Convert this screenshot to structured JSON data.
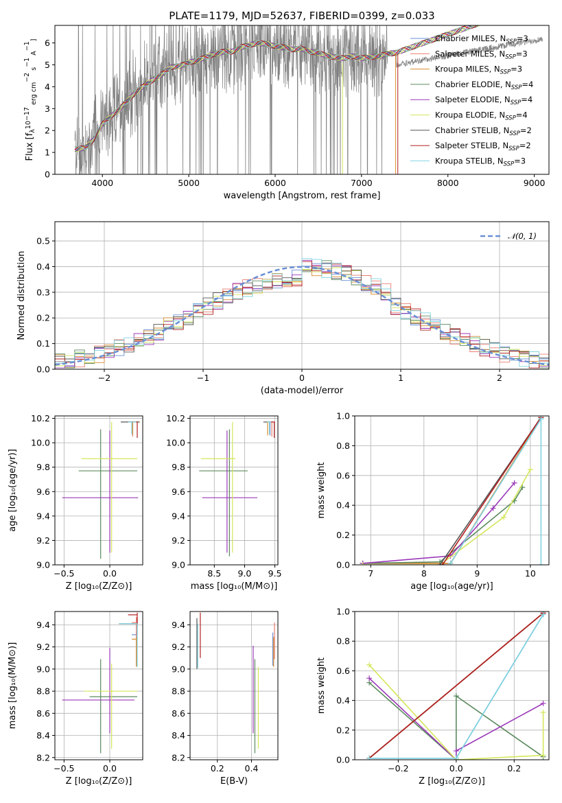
{
  "figure": {
    "title": "PLATE=1179, MJD=52637, FIBERID=0399, z=0.033"
  },
  "models": [
    {
      "name": "Chabrier MILES",
      "nssp": "3",
      "color": "#6a8fd4"
    },
    {
      "name": "Salpeter MILES",
      "nssp": "3",
      "color": "#e87b6d"
    },
    {
      "name": "Kroupa MILES",
      "nssp": "3",
      "color": "#d98b2b"
    },
    {
      "name": "Chabrier ELODIE",
      "nssp": "4",
      "color": "#5a8a5e"
    },
    {
      "name": "Salpeter ELODIE",
      "nssp": "4",
      "color": "#9b37b8"
    },
    {
      "name": "Kroupa ELODIE",
      "nssp": "4",
      "color": "#d4e65a"
    },
    {
      "name": "Chabrier STELIB",
      "nssp": "2",
      "color": "#555555"
    },
    {
      "name": "Salpeter STELIB",
      "nssp": "2",
      "color": "#b21f1f"
    },
    {
      "name": "Kroupa STELIB",
      "nssp": "3",
      "color": "#7fd4e0"
    }
  ],
  "chart_data": [
    {
      "id": "spectrum",
      "type": "line",
      "title": "PLATE=1179, MJD=52637, FIBERID=0399, z=0.033",
      "xlabel": "wavelength [Angstrom, rest frame]",
      "ylabel_parts": [
        "Flux [f",
        "λ",
        "10",
        "−17",
        " erg cm",
        "−2",
        " s",
        "−1",
        " A",
        "−1",
        "]"
      ],
      "xlim": [
        3450,
        9170
      ],
      "ylim": [
        0,
        6.8
      ],
      "xticks": [
        "4000",
        "5000",
        "6000",
        "7000",
        "8000",
        "9000"
      ],
      "yticks": [
        "0",
        "1",
        "2",
        "3",
        "4",
        "5",
        "6"
      ],
      "legend_loc": "upper right",
      "data_color": "#808080",
      "data_range": [
        3680,
        9100
      ],
      "model_continuum": {
        "x": [
          3680,
          3800,
          3900,
          4000,
          4100,
          4200,
          4300,
          4400,
          4500,
          4600,
          4700,
          4800,
          4900,
          5000,
          5100,
          5200,
          5300,
          5400,
          5500,
          5600,
          5700,
          5800,
          5900,
          6000,
          6100,
          6200,
          6300,
          6400,
          6500,
          6600,
          6700,
          6800,
          6900,
          7000,
          7100,
          7200,
          7300,
          7400
        ],
        "y": [
          1.15,
          1.2,
          1.6,
          2.3,
          2.65,
          3.0,
          3.4,
          3.8,
          4.1,
          4.35,
          4.6,
          4.9,
          4.95,
          5.1,
          5.2,
          5.35,
          5.5,
          5.6,
          5.6,
          5.8,
          5.9,
          6.0,
          5.95,
          5.85,
          5.8,
          5.7,
          5.75,
          5.6,
          5.55,
          5.4,
          5.35,
          5.3,
          5.4,
          5.3,
          5.35,
          5.4,
          5.5,
          5.55
        ]
      }
    },
    {
      "id": "residuals",
      "type": "histogram",
      "xlabel": "(data-model)/error",
      "ylabel": "Normed distribution",
      "xlim": [
        -2.5,
        2.5
      ],
      "ylim": [
        0,
        0.575
      ],
      "xticks": [
        "−2",
        "−1",
        "0",
        "1",
        "2"
      ],
      "xtick_values": [
        -2,
        -1,
        0,
        1,
        2
      ],
      "yticks": [
        "0.0",
        "0.1",
        "0.2",
        "0.3",
        "0.4",
        "0.5"
      ],
      "ytick_values": [
        0,
        0.1,
        0.2,
        0.3,
        0.4,
        0.5
      ],
      "bin_width": 0.1,
      "reference_curve": {
        "label": "𝒩(0, 1)",
        "mean": 0,
        "sigma": 1,
        "color": "#6a8fd4"
      },
      "grid": true
    },
    {
      "id": "age-vs-Z",
      "type": "errorbar",
      "xlabel": "Z [log₁₀(Z/Z⊙)]",
      "ylabel": "age  [log₁₀(age/yr)]",
      "xlim": [
        -0.6,
        0.36
      ],
      "ylim": [
        9.0,
        10.22
      ],
      "xticks": [
        "−0.5",
        "0.0"
      ],
      "xtick_values": [
        -0.5,
        0
      ],
      "yticks": [
        "9.0",
        "9.2",
        "9.4",
        "9.6",
        "9.8",
        "10.0",
        "10.2"
      ],
      "ytick_values": [
        9.0,
        9.2,
        9.4,
        9.6,
        9.8,
        10.0,
        10.2
      ],
      "points": [
        {
          "model": 0,
          "x": 0.25,
          "y": 10.17,
          "xerr": [
            0.06,
            0.06
          ],
          "yerr": [
            0.11,
            0.0
          ]
        },
        {
          "model": 1,
          "x": 0.25,
          "y": 10.17,
          "xerr": [
            0.05,
            0.08
          ],
          "yerr": [
            0.12,
            0.0
          ]
        },
        {
          "model": 2,
          "x": 0.25,
          "y": 10.17,
          "xerr": [
            0.05,
            0.08
          ],
          "yerr": [
            0.1,
            0.0
          ]
        },
        {
          "model": 3,
          "x": -0.1,
          "y": 9.77,
          "xerr": [
            0.24,
            0.4
          ],
          "yerr": [
            0.72,
            0.34
          ]
        },
        {
          "model": 4,
          "x": 0.0,
          "y": 9.55,
          "xerr": [
            0.52,
            0.31
          ],
          "yerr": [
            0.45,
            0.55
          ]
        },
        {
          "model": 5,
          "x": 0.02,
          "y": 9.87,
          "xerr": [
            0.33,
            0.28
          ],
          "yerr": [
            0.77,
            0.3
          ]
        },
        {
          "model": 6,
          "x": 0.22,
          "y": 10.17,
          "xerr": [
            0.1,
            0.1
          ],
          "yerr": [
            0.0,
            0.0
          ]
        },
        {
          "model": 7,
          "x": 0.3,
          "y": 10.17,
          "xerr": [
            0.1,
            0.0
          ],
          "yerr": [
            0.13,
            0.0
          ]
        },
        {
          "model": 8,
          "x": 0.24,
          "y": 10.17,
          "xerr": [
            0.04,
            0.05
          ],
          "yerr": [
            0.1,
            0.0
          ]
        }
      ]
    },
    {
      "id": "age-vs-mass",
      "type": "errorbar",
      "xlabel": "mass [log₁₀(M/M⊙)]",
      "ylabel": "",
      "xlim": [
        8.1,
        9.55
      ],
      "ylim": [
        9.0,
        10.22
      ],
      "xticks": [
        "8.5",
        "9.0",
        "9.5"
      ],
      "xtick_values": [
        8.5,
        9.0,
        9.5
      ],
      "yticks": [
        "9.0",
        "9.2",
        "9.4",
        "9.6",
        "9.8",
        "10.0",
        "10.2"
      ],
      "ytick_values": [
        9.0,
        9.2,
        9.4,
        9.6,
        9.8,
        10.0,
        10.2
      ],
      "points": [
        {
          "model": 0,
          "x": 9.42,
          "y": 10.17,
          "xerr": [
            0.02,
            0.02
          ],
          "yerr": [
            0.11,
            0.0
          ]
        },
        {
          "model": 1,
          "x": 9.45,
          "y": 10.17,
          "xerr": [
            0.05,
            0.05
          ],
          "yerr": [
            0.12,
            0.0
          ]
        },
        {
          "model": 2,
          "x": 9.38,
          "y": 10.17,
          "xerr": [
            0.02,
            0.02
          ],
          "yerr": [
            0.11,
            0.0
          ]
        },
        {
          "model": 3,
          "x": 8.75,
          "y": 9.77,
          "xerr": [
            0.5,
            0.3
          ],
          "yerr": [
            0.7,
            0.34
          ]
        },
        {
          "model": 4,
          "x": 8.71,
          "y": 9.55,
          "xerr": [
            0.41,
            0.5
          ],
          "yerr": [
            0.45,
            0.55
          ]
        },
        {
          "model": 5,
          "x": 8.8,
          "y": 9.87,
          "xerr": [
            0.52,
            0.05
          ],
          "yerr": [
            0.77,
            0.3
          ]
        },
        {
          "model": 6,
          "x": 9.41,
          "y": 10.17,
          "xerr": [
            0.1,
            0.05
          ],
          "yerr": [
            0.0,
            0.0
          ]
        },
        {
          "model": 7,
          "x": 9.49,
          "y": 10.17,
          "xerr": [
            0.1,
            0.01
          ],
          "yerr": [
            0.13,
            0.0
          ]
        },
        {
          "model": 8,
          "x": 9.41,
          "y": 10.17,
          "xerr": [
            0.04,
            0.03
          ],
          "yerr": [
            0.1,
            0.0
          ]
        }
      ]
    },
    {
      "id": "weight-vs-age",
      "type": "line",
      "xlabel": "age  [log₁₀(age/yr)]",
      "ylabel": "mass weight",
      "xlim": [
        6.7,
        10.35
      ],
      "ylim": [
        0,
        1.0
      ],
      "xticks": [
        "7",
        "8",
        "9",
        "10"
      ],
      "xtick_values": [
        7,
        8,
        9,
        10
      ],
      "yticks": [
        "0.0",
        "0.2",
        "0.4",
        "0.6",
        "0.8",
        "1.0"
      ],
      "ytick_values": [
        0,
        0.2,
        0.4,
        0.6,
        0.8,
        1.0
      ],
      "series": [
        {
          "model": 0,
          "x": [
            6.85,
            8.3,
            8.5,
            10.2
          ],
          "y": [
            0.01,
            0.01,
            0.01,
            0.98
          ]
        },
        {
          "model": 1,
          "x": [
            6.85,
            8.5,
            10.2
          ],
          "y": [
            0.01,
            0.01,
            0.99
          ]
        },
        {
          "model": 2,
          "x": [
            6.85,
            8.5,
            10.2
          ],
          "y": [
            0.01,
            0.01,
            0.99
          ]
        },
        {
          "model": 3,
          "x": [
            6.85,
            8.3,
            9.7,
            9.85
          ],
          "y": [
            0.01,
            0.02,
            0.43,
            0.52
          ]
        },
        {
          "model": 4,
          "x": [
            6.85,
            8.5,
            9.3,
            9.7
          ],
          "y": [
            0.01,
            0.06,
            0.38,
            0.55
          ]
        },
        {
          "model": 5,
          "x": [
            6.85,
            8.3,
            9.5,
            10.0
          ],
          "y": [
            0.0,
            0.0,
            0.32,
            0.64
          ]
        },
        {
          "model": 6,
          "x": [
            8.3,
            10.2
          ],
          "y": [
            0.0,
            0.99
          ]
        },
        {
          "model": 7,
          "x": [
            8.35,
            10.2
          ],
          "y": [
            0.0,
            0.99
          ]
        },
        {
          "model": 8,
          "x": [
            8.5,
            10.2,
            10.2
          ],
          "y": [
            0.01,
            0.98,
            0.0
          ]
        }
      ]
    },
    {
      "id": "mass-vs-Z",
      "type": "errorbar",
      "xlabel": "Z [log₁₀(Z/Z⊙)]",
      "ylabel": "mass [log₁₀(M/M⊙)]",
      "xlim": [
        -0.6,
        0.36
      ],
      "ylim": [
        8.18,
        9.52
      ],
      "xticks": [
        "−0.5",
        "0.0"
      ],
      "xtick_values": [
        -0.5,
        0
      ],
      "yticks": [
        "8.2",
        "8.4",
        "8.6",
        "8.8",
        "9.0",
        "9.2",
        "9.4"
      ],
      "ytick_values": [
        8.2,
        8.4,
        8.6,
        8.8,
        9.0,
        9.2,
        9.4
      ],
      "points": [
        {
          "model": 0,
          "x": 0.29,
          "y": 9.31,
          "xerr": [
            0.05,
            0.0
          ],
          "yerr": [
            0.28,
            0.02
          ]
        },
        {
          "model": 1,
          "x": 0.29,
          "y": 9.42,
          "xerr": [
            0.05,
            0.0
          ],
          "yerr": [
            0.33,
            0.05
          ]
        },
        {
          "model": 2,
          "x": 0.29,
          "y": 9.27,
          "xerr": [
            0.05,
            0.0
          ],
          "yerr": [
            0.25,
            0.02
          ]
        },
        {
          "model": 3,
          "x": -0.1,
          "y": 8.75,
          "xerr": [
            0.12,
            0.4
          ],
          "yerr": [
            0.51,
            0.34
          ]
        },
        {
          "model": 4,
          "x": 0.0,
          "y": 8.72,
          "xerr": [
            0.52,
            0.27
          ],
          "yerr": [
            0.3,
            0.47
          ]
        },
        {
          "model": 5,
          "x": 0.02,
          "y": 8.8,
          "xerr": [
            0.3,
            0.28
          ],
          "yerr": [
            0.52,
            0.25
          ]
        },
        {
          "model": 6,
          "x": 0.3,
          "y": 9.41,
          "xerr": [
            0.2,
            0.0
          ],
          "yerr": [
            0.1,
            0.05
          ]
        },
        {
          "model": 7,
          "x": 0.3,
          "y": 9.49,
          "xerr": [
            0.1,
            0.0
          ],
          "yerr": [
            0.1,
            0.02
          ]
        },
        {
          "model": 8,
          "x": 0.3,
          "y": 9.41,
          "xerr": [
            0.2,
            0.0
          ],
          "yerr": [
            0.39,
            0.0
          ]
        }
      ]
    },
    {
      "id": "mass-vs-EBV",
      "type": "errorbar",
      "xlabel": "E(B-V)",
      "ylabel": "",
      "xlim": [
        0.04,
        0.555
      ],
      "ylim": [
        8.18,
        9.52
      ],
      "xticks": [
        "0.2",
        "0.4"
      ],
      "xtick_values": [
        0.2,
        0.4
      ],
      "yticks": [
        "8.2",
        "8.4",
        "8.6",
        "8.8",
        "9.0",
        "9.2",
        "9.4"
      ],
      "ytick_values": [
        8.2,
        8.4,
        8.6,
        8.8,
        9.0,
        9.2,
        9.4
      ],
      "points": [
        {
          "model": 0,
          "x": 0.525,
          "y": 9.31,
          "xerr": [
            0.0,
            0.0
          ],
          "yerr": [
            0.28,
            0.02
          ]
        },
        {
          "model": 1,
          "x": 0.535,
          "y": 9.42,
          "xerr": [
            0.0,
            0.0
          ],
          "yerr": [
            0.33,
            0.0
          ]
        },
        {
          "model": 2,
          "x": 0.53,
          "y": 9.27,
          "xerr": [
            0.0,
            0.0
          ],
          "yerr": [
            0.25,
            0.02
          ]
        },
        {
          "model": 3,
          "x": 0.42,
          "y": 8.75,
          "xerr": [
            0.0,
            0.0
          ],
          "yerr": [
            0.51,
            0.34
          ]
        },
        {
          "model": 4,
          "x": 0.41,
          "y": 8.72,
          "xerr": [
            0.0,
            0.0
          ],
          "yerr": [
            0.3,
            0.49
          ]
        },
        {
          "model": 5,
          "x": 0.44,
          "y": 8.8,
          "xerr": [
            0.0,
            0.0
          ],
          "yerr": [
            0.52,
            0.22
          ]
        },
        {
          "model": 6,
          "x": 0.08,
          "y": 9.41,
          "xerr": [
            0.0,
            0.0
          ],
          "yerr": [
            0.41,
            0.05
          ]
        },
        {
          "model": 7,
          "x": 0.1,
          "y": 9.49,
          "xerr": [
            0.0,
            0.0
          ],
          "yerr": [
            0.39,
            0.02
          ]
        },
        {
          "model": 8,
          "x": 0.085,
          "y": 9.41,
          "xerr": [
            0.0,
            0.0
          ],
          "yerr": [
            0.4,
            0.0
          ]
        }
      ]
    },
    {
      "id": "weight-vs-Z",
      "type": "line",
      "xlabel": "Z [log₁₀(Z/Z⊙)]",
      "ylabel": "mass weight",
      "xlim": [
        -0.35,
        0.32
      ],
      "ylim": [
        0,
        1.0
      ],
      "xticks": [
        "−0.2",
        "0.0",
        "0.2"
      ],
      "xtick_values": [
        -0.2,
        0,
        0.2
      ],
      "yticks": [
        "0.0",
        "0.2",
        "0.4",
        "0.6",
        "0.8",
        "1.0"
      ],
      "ytick_values": [
        0,
        0.2,
        0.4,
        0.6,
        0.8,
        1.0
      ],
      "series": [
        {
          "model": 0,
          "x": [
            -0.3,
            0.0,
            0.3
          ],
          "y": [
            0.01,
            0.01,
            0.98
          ]
        },
        {
          "model": 1,
          "x": [
            -0.3,
            0.3
          ],
          "y": [
            0.01,
            0.99
          ]
        },
        {
          "model": 2,
          "x": [
            -0.3,
            0.3
          ],
          "y": [
            0.01,
            0.99
          ]
        },
        {
          "model": 3,
          "x": [
            -0.3,
            0.0,
            0.0,
            0.3
          ],
          "y": [
            0.52,
            0.0,
            0.43,
            0.02
          ]
        },
        {
          "model": 4,
          "x": [
            -0.3,
            0.0,
            0.0,
            0.3
          ],
          "y": [
            0.55,
            0.0,
            0.06,
            0.38
          ]
        },
        {
          "model": 5,
          "x": [
            -0.3,
            0.0,
            0.3,
            0.3
          ],
          "y": [
            0.64,
            0.0,
            0.03,
            0.32
          ]
        },
        {
          "model": 6,
          "x": [
            -0.3,
            0.3
          ],
          "y": [
            0.01,
            0.99
          ]
        },
        {
          "model": 7,
          "x": [
            -0.3,
            0.3
          ],
          "y": [
            0.01,
            0.99
          ]
        },
        {
          "model": 8,
          "x": [
            -0.3,
            0.0,
            0.3
          ],
          "y": [
            0.01,
            0.01,
            0.98
          ]
        }
      ]
    }
  ]
}
